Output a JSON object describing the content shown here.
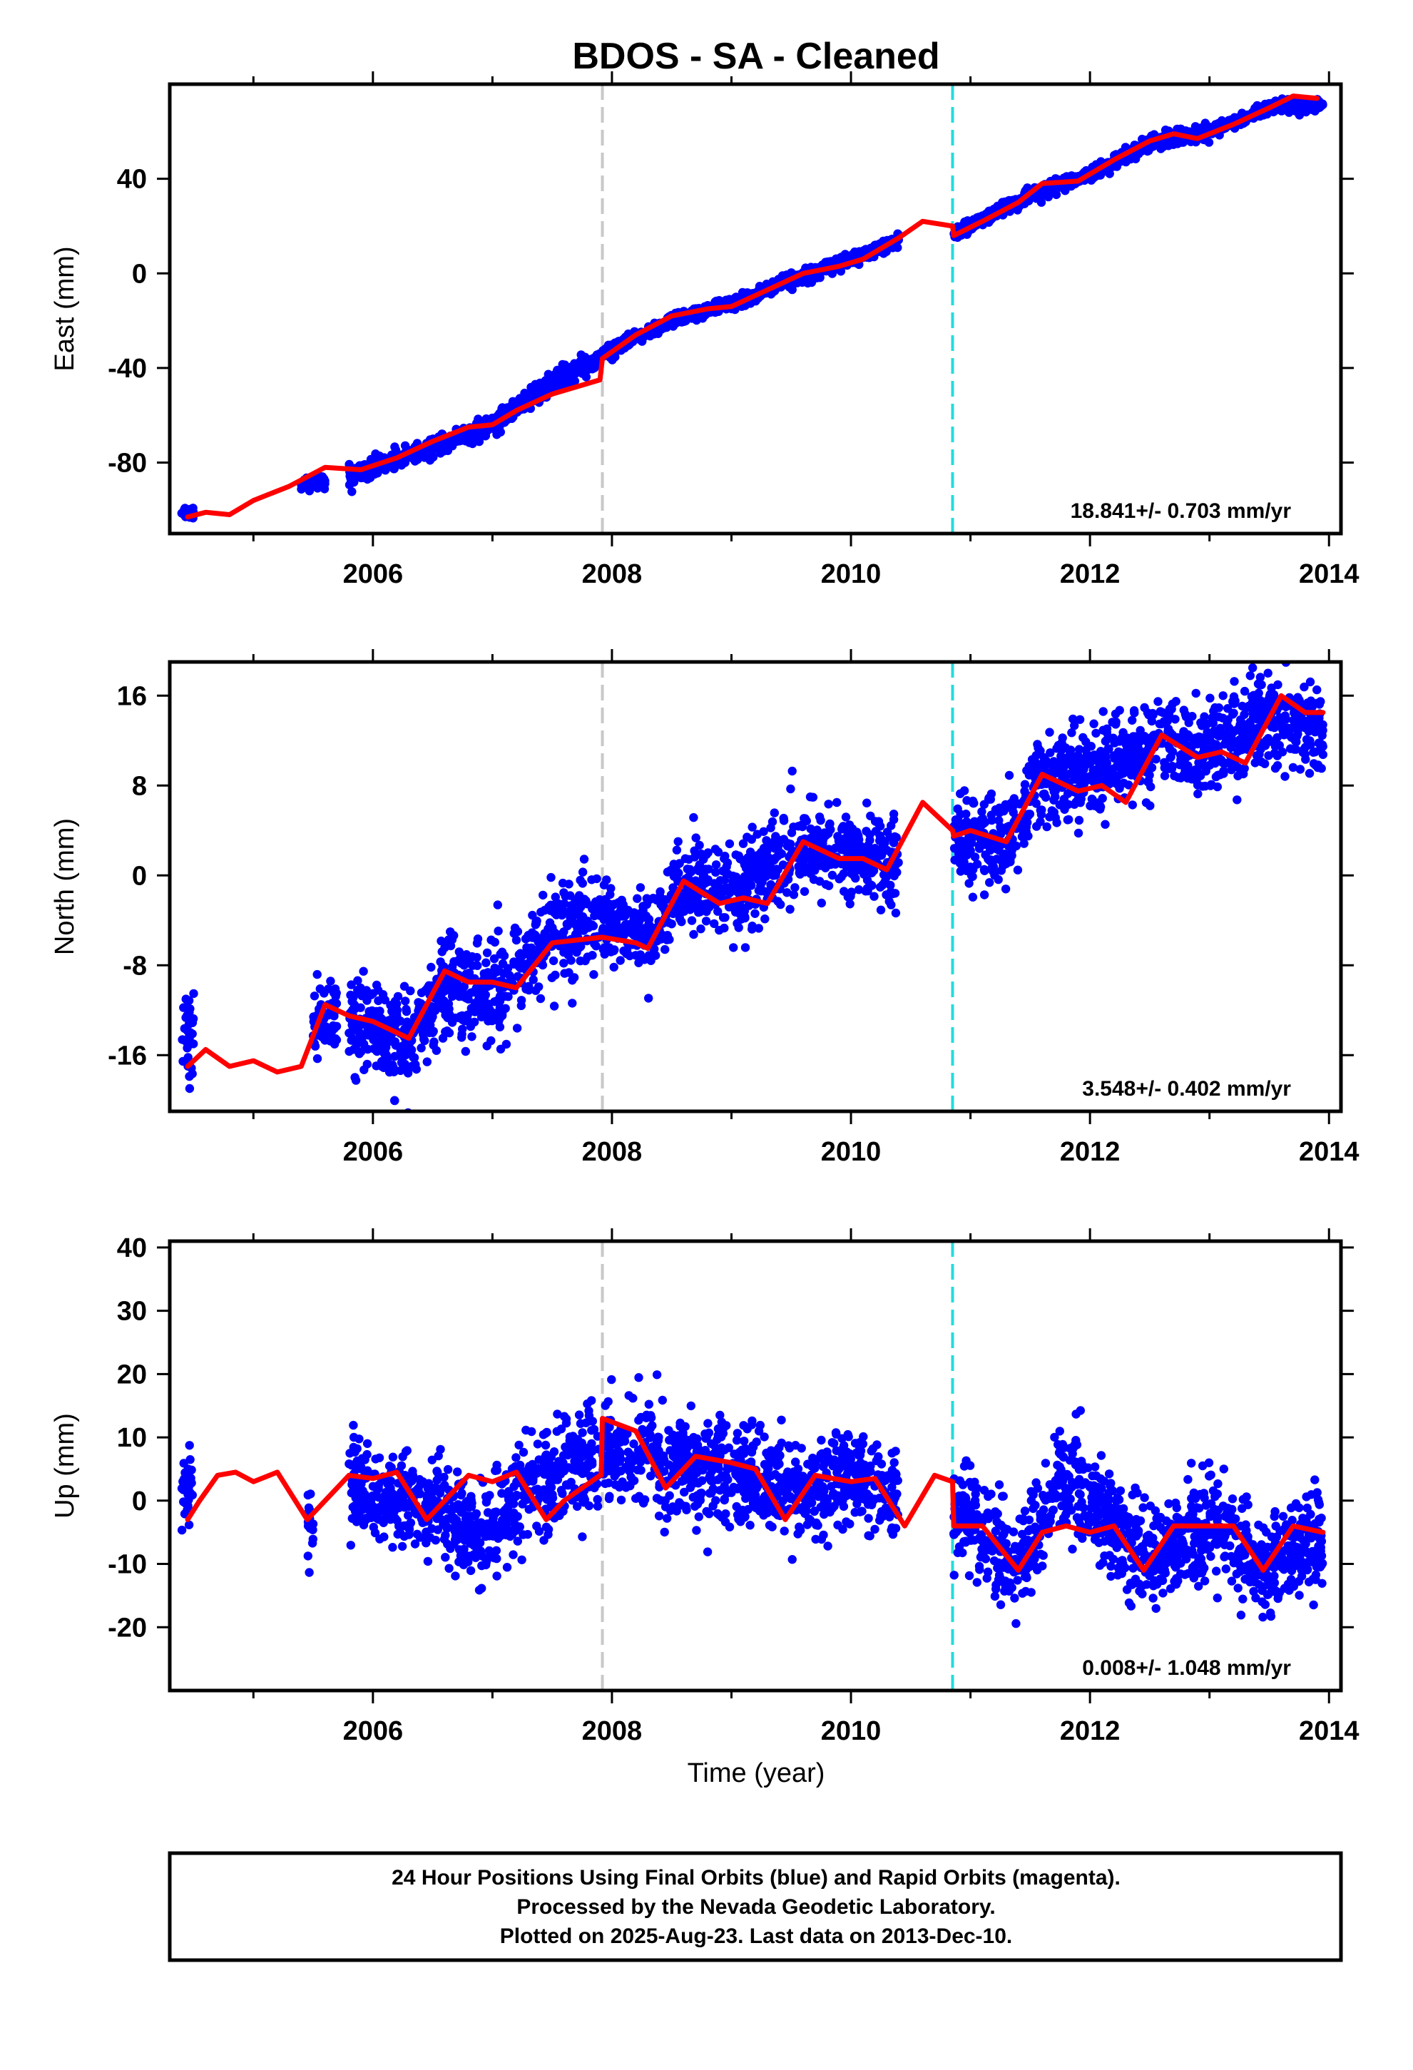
{
  "chart_data": {
    "title": "BDOS  - SA - Cleaned",
    "type": "scatter",
    "x_unit": "year",
    "xlabel": "Time (year)",
    "xlim": [
      2004.3,
      2014.1
    ],
    "xticks": [
      2006,
      2008,
      2010,
      2012,
      2014
    ],
    "markers": [
      {
        "type": "vertical-dashed-line",
        "x": 2007.92,
        "color": "#c8c8c8"
      },
      {
        "type": "vertical-dashed-line",
        "x": 2010.85,
        "color": "#22dddd"
      }
    ],
    "colors": {
      "points": "#0000ff",
      "model": "#ff0000",
      "axis": "#000000"
    },
    "panels": [
      {
        "ylabel": "East (mm)",
        "ylim": [
          -110,
          80
        ],
        "yticks": [
          40,
          0,
          -40,
          -80
        ],
        "ytick_labels": [
          "40",
          "0",
          "-40",
          "-80"
        ],
        "rate_text": "18.841+/- 0.703 mm/yr",
        "rate": 18.841,
        "model_curve": [
          [
            2004.45,
            -103
          ],
          [
            2004.6,
            -101
          ],
          [
            2004.8,
            -102
          ],
          [
            2005.0,
            -96
          ],
          [
            2005.3,
            -90
          ],
          [
            2005.6,
            -82
          ],
          [
            2005.9,
            -83
          ],
          [
            2006.2,
            -78
          ],
          [
            2006.5,
            -71
          ],
          [
            2006.8,
            -65
          ],
          [
            2007.0,
            -64
          ],
          [
            2007.2,
            -58
          ],
          [
            2007.5,
            -51
          ],
          [
            2007.9,
            -45
          ],
          [
            2007.92,
            -36
          ],
          [
            2008.2,
            -26
          ],
          [
            2008.5,
            -18
          ],
          [
            2008.8,
            -15
          ],
          [
            2009.0,
            -14
          ],
          [
            2009.3,
            -7
          ],
          [
            2009.6,
            0
          ],
          [
            2009.9,
            3
          ],
          [
            2010.1,
            6
          ],
          [
            2010.4,
            15
          ],
          [
            2010.6,
            22
          ],
          [
            2010.85,
            20
          ],
          [
            2010.86,
            16
          ],
          [
            2011.1,
            22
          ],
          [
            2011.4,
            30
          ],
          [
            2011.6,
            38
          ],
          [
            2011.9,
            39
          ],
          [
            2012.2,
            48
          ],
          [
            2012.5,
            56
          ],
          [
            2012.7,
            59
          ],
          [
            2012.9,
            57
          ],
          [
            2013.2,
            63
          ],
          [
            2013.5,
            70
          ],
          [
            2013.7,
            75
          ],
          [
            2013.9,
            74
          ]
        ],
        "scatter_segments": [
          {
            "x0": 2004.4,
            "x1": 2004.5,
            "trend": [
              [
                2004.4,
                -101
              ],
              [
                2004.5,
                -101
              ]
            ],
            "spread": 2.5
          },
          {
            "x0": 2005.4,
            "x1": 2005.6,
            "trend": [
              [
                2005.4,
                -89
              ],
              [
                2005.6,
                -88
              ]
            ],
            "spread": 2.5
          },
          {
            "x0": 2005.8,
            "x1": 2007.9,
            "trend": [
              [
                2005.8,
                -86
              ],
              [
                2006.5,
                -74
              ],
              [
                2007.0,
                -64
              ],
              [
                2007.5,
                -46
              ],
              [
                2007.9,
                -36
              ]
            ],
            "spread": 3.5
          },
          {
            "x0": 2007.92,
            "x1": 2010.4,
            "trend": [
              [
                2007.92,
                -34
              ],
              [
                2008.5,
                -20
              ],
              [
                2009.0,
                -13
              ],
              [
                2009.5,
                -3
              ],
              [
                2010.0,
                6
              ],
              [
                2010.4,
                14
              ]
            ],
            "spread": 2.5
          },
          {
            "x0": 2010.86,
            "x1": 2013.95,
            "trend": [
              [
                2010.86,
                17
              ],
              [
                2011.5,
                33
              ],
              [
                2012.0,
                42
              ],
              [
                2012.5,
                55
              ],
              [
                2013.0,
                60
              ],
              [
                2013.5,
                70
              ],
              [
                2013.95,
                71
              ]
            ],
            "spread": 2.5
          }
        ]
      },
      {
        "ylabel": "North (mm)",
        "ylim": [
          -21,
          19
        ],
        "yticks": [
          16,
          8,
          0,
          -8,
          -16
        ],
        "ytick_labels": [
          "16",
          "8",
          "0",
          "-8",
          "-16"
        ],
        "rate_text": "3.548+/- 0.402 mm/yr",
        "rate": 3.548,
        "model_curve": [
          [
            2004.45,
            -17
          ],
          [
            2004.6,
            -15.5
          ],
          [
            2004.8,
            -17
          ],
          [
            2005.0,
            -16.5
          ],
          [
            2005.2,
            -17.5
          ],
          [
            2005.4,
            -17
          ],
          [
            2005.6,
            -11.5
          ],
          [
            2005.8,
            -12.5
          ],
          [
            2006.0,
            -13
          ],
          [
            2006.3,
            -14.5
          ],
          [
            2006.6,
            -8.5
          ],
          [
            2006.8,
            -9.5
          ],
          [
            2007.0,
            -9.5
          ],
          [
            2007.2,
            -10
          ],
          [
            2007.5,
            -6
          ],
          [
            2007.92,
            -5.5
          ],
          [
            2008.2,
            -6
          ],
          [
            2008.3,
            -6.5
          ],
          [
            2008.6,
            -0.5
          ],
          [
            2008.9,
            -2.5
          ],
          [
            2009.1,
            -2
          ],
          [
            2009.3,
            -2.5
          ],
          [
            2009.6,
            3
          ],
          [
            2009.9,
            1.5
          ],
          [
            2010.1,
            1.5
          ],
          [
            2010.3,
            0.5
          ],
          [
            2010.6,
            6.5
          ],
          [
            2010.85,
            4
          ],
          [
            2010.86,
            3.5
          ],
          [
            2011.0,
            4
          ],
          [
            2011.3,
            3
          ],
          [
            2011.6,
            9
          ],
          [
            2011.9,
            7.5
          ],
          [
            2012.1,
            8
          ],
          [
            2012.3,
            6.5
          ],
          [
            2012.6,
            12.5
          ],
          [
            2012.9,
            10.5
          ],
          [
            2013.1,
            11
          ],
          [
            2013.3,
            10
          ],
          [
            2013.6,
            16
          ],
          [
            2013.8,
            14.5
          ],
          [
            2013.95,
            14.5
          ]
        ],
        "scatter_segments": [
          {
            "x0": 2004.4,
            "x1": 2004.5,
            "trend": [
              [
                2004.4,
                -14
              ],
              [
                2004.5,
                -14
              ]
            ],
            "spread": 3
          },
          {
            "x0": 2005.5,
            "x1": 2005.7,
            "trend": [
              [
                2005.5,
                -13
              ],
              [
                2005.7,
                -12
              ]
            ],
            "spread": 3
          },
          {
            "x0": 2005.8,
            "x1": 2007.9,
            "trend": [
              [
                2005.8,
                -13
              ],
              [
                2006.3,
                -15
              ],
              [
                2006.6,
                -10
              ],
              [
                2007.0,
                -11
              ],
              [
                2007.5,
                -5
              ],
              [
                2007.9,
                -4
              ]
            ],
            "spread": 4
          },
          {
            "x0": 2007.92,
            "x1": 2010.4,
            "trend": [
              [
                2007.92,
                -4
              ],
              [
                2008.3,
                -5
              ],
              [
                2008.6,
                -1
              ],
              [
                2009.0,
                -2
              ],
              [
                2009.5,
                2
              ],
              [
                2010.0,
                2
              ],
              [
                2010.4,
                1
              ]
            ],
            "spread": 3.5
          },
          {
            "x0": 2010.86,
            "x1": 2013.95,
            "trend": [
              [
                2010.86,
                3
              ],
              [
                2011.3,
                3
              ],
              [
                2011.6,
                9
              ],
              [
                2012.0,
                9
              ],
              [
                2012.6,
                12
              ],
              [
                2013.0,
                11
              ],
              [
                2013.5,
                14
              ],
              [
                2013.95,
                13
              ]
            ],
            "spread": 3.5
          }
        ]
      },
      {
        "ylabel": "Up (mm)",
        "ylim": [
          -30,
          41
        ],
        "yticks": [
          40,
          30,
          20,
          10,
          0,
          -10,
          -20
        ],
        "ytick_labels": [
          "40",
          "30",
          "20",
          "10",
          "0",
          "-10",
          "-20"
        ],
        "rate_text": "0.008+/- 1.048 mm/yr",
        "rate": 0.008,
        "model_curve": [
          [
            2004.45,
            -3
          ],
          [
            2004.55,
            0
          ],
          [
            2004.7,
            4
          ],
          [
            2004.85,
            4.5
          ],
          [
            2005.0,
            3
          ],
          [
            2005.2,
            4.5
          ],
          [
            2005.45,
            -3
          ],
          [
            2005.6,
            0
          ],
          [
            2005.8,
            4
          ],
          [
            2006.0,
            3.5
          ],
          [
            2006.2,
            4.5
          ],
          [
            2006.45,
            -3
          ],
          [
            2006.6,
            0
          ],
          [
            2006.8,
            4
          ],
          [
            2007.0,
            3
          ],
          [
            2007.2,
            4.5
          ],
          [
            2007.45,
            -3
          ],
          [
            2007.6,
            0
          ],
          [
            2007.9,
            4
          ],
          [
            2007.91,
            4
          ],
          [
            2007.92,
            13
          ],
          [
            2008.2,
            11
          ],
          [
            2008.45,
            2
          ],
          [
            2008.7,
            7
          ],
          [
            2009.0,
            6
          ],
          [
            2009.2,
            5
          ],
          [
            2009.45,
            -3
          ],
          [
            2009.7,
            4
          ],
          [
            2010.0,
            3
          ],
          [
            2010.2,
            3.5
          ],
          [
            2010.45,
            -4
          ],
          [
            2010.7,
            4
          ],
          [
            2010.85,
            3
          ],
          [
            2010.86,
            -4
          ],
          [
            2011.1,
            -4
          ],
          [
            2011.4,
            -11
          ],
          [
            2011.6,
            -5
          ],
          [
            2011.8,
            -4
          ],
          [
            2012.0,
            -5
          ],
          [
            2012.2,
            -4
          ],
          [
            2012.45,
            -11
          ],
          [
            2012.7,
            -4
          ],
          [
            2013.0,
            -4
          ],
          [
            2013.2,
            -4
          ],
          [
            2013.45,
            -11
          ],
          [
            2013.7,
            -4
          ],
          [
            2013.95,
            -5
          ]
        ],
        "scatter_segments": [
          {
            "x0": 2004.4,
            "x1": 2004.5,
            "trend": [
              [
                2004.4,
                2
              ],
              [
                2004.5,
                2
              ]
            ],
            "spread": 6
          },
          {
            "x0": 2005.45,
            "x1": 2005.5,
            "trend": [
              [
                2005.45,
                -5
              ],
              [
                2005.5,
                -5
              ]
            ],
            "spread": 7
          },
          {
            "x0": 2005.8,
            "x1": 2007.9,
            "trend": [
              [
                2005.8,
                3
              ],
              [
                2006.3,
                0
              ],
              [
                2006.6,
                -3
              ],
              [
                2006.9,
                -5
              ],
              [
                2007.3,
                2
              ],
              [
                2007.6,
                5
              ],
              [
                2007.9,
                6
              ]
            ],
            "spread": 7
          },
          {
            "x0": 2007.92,
            "x1": 2010.4,
            "trend": [
              [
                2007.92,
                8
              ],
              [
                2008.4,
                6
              ],
              [
                2008.8,
                5
              ],
              [
                2009.2,
                3
              ],
              [
                2009.6,
                1
              ],
              [
                2010.0,
                4
              ],
              [
                2010.4,
                0
              ]
            ],
            "spread": 7
          },
          {
            "x0": 2010.86,
            "x1": 2013.95,
            "trend": [
              [
                2010.86,
                -3
              ],
              [
                2011.4,
                -10
              ],
              [
                2011.8,
                5
              ],
              [
                2012.2,
                -5
              ],
              [
                2012.5,
                -10
              ],
              [
                2013.0,
                -3
              ],
              [
                2013.4,
                -10
              ],
              [
                2013.95,
                -5
              ]
            ],
            "spread": 7
          }
        ]
      }
    ]
  },
  "footer": {
    "line1": "24 Hour Positions Using Final Orbits (blue) and Rapid Orbits (magenta).",
    "line2": "Processed by the Nevada Geodetic Laboratory.",
    "line3": "Plotted on 2025-Aug-23. Last data on 2013-Dec-10."
  }
}
